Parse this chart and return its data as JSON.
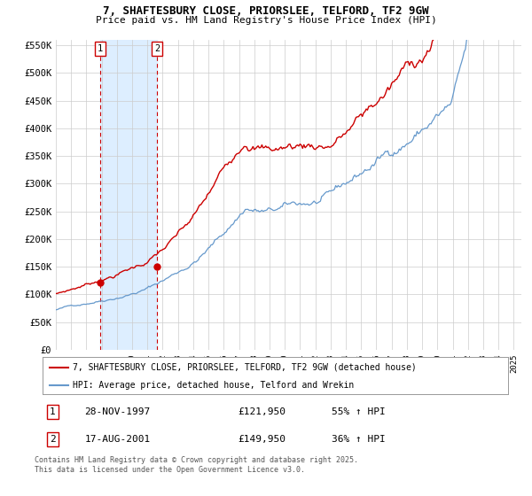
{
  "title_line1": "7, SHAFTESBURY CLOSE, PRIORSLEE, TELFORD, TF2 9GW",
  "title_line2": "Price paid vs. HM Land Registry's House Price Index (HPI)",
  "ylim": [
    0,
    560000
  ],
  "xlim_start": 1995.0,
  "xlim_end": 2025.5,
  "yticks": [
    0,
    50000,
    100000,
    150000,
    200000,
    250000,
    300000,
    350000,
    400000,
    450000,
    500000,
    550000
  ],
  "ytick_labels": [
    "£0",
    "£50K",
    "£100K",
    "£150K",
    "£200K",
    "£250K",
    "£300K",
    "£350K",
    "£400K",
    "£450K",
    "£500K",
    "£550K"
  ],
  "xticks": [
    1995,
    1996,
    1997,
    1998,
    1999,
    2000,
    2001,
    2002,
    2003,
    2004,
    2005,
    2006,
    2007,
    2008,
    2009,
    2010,
    2011,
    2012,
    2013,
    2014,
    2015,
    2016,
    2017,
    2018,
    2019,
    2020,
    2021,
    2022,
    2023,
    2024,
    2025
  ],
  "sale1_date": 1997.91,
  "sale1_price": 121950,
  "sale1_label": "1",
  "sale2_date": 2001.63,
  "sale2_price": 149950,
  "sale2_label": "2",
  "red_line_color": "#cc0000",
  "blue_line_color": "#6699cc",
  "shade_color": "#ddeeff",
  "vline_color": "#cc0000",
  "background_color": "#ffffff",
  "grid_color": "#cccccc",
  "legend_line1": "7, SHAFTESBURY CLOSE, PRIORSLEE, TELFORD, TF2 9GW (detached house)",
  "legend_line2": "HPI: Average price, detached house, Telford and Wrekin",
  "footnote": "Contains HM Land Registry data © Crown copyright and database right 2025.\nThis data is licensed under the Open Government Licence v3.0.",
  "table_entry1_num": "1",
  "table_entry1_date": "28-NOV-1997",
  "table_entry1_price": "£121,950",
  "table_entry1_hpi": "55% ↑ HPI",
  "table_entry2_num": "2",
  "table_entry2_date": "17-AUG-2001",
  "table_entry2_price": "£149,950",
  "table_entry2_hpi": "36% ↑ HPI"
}
